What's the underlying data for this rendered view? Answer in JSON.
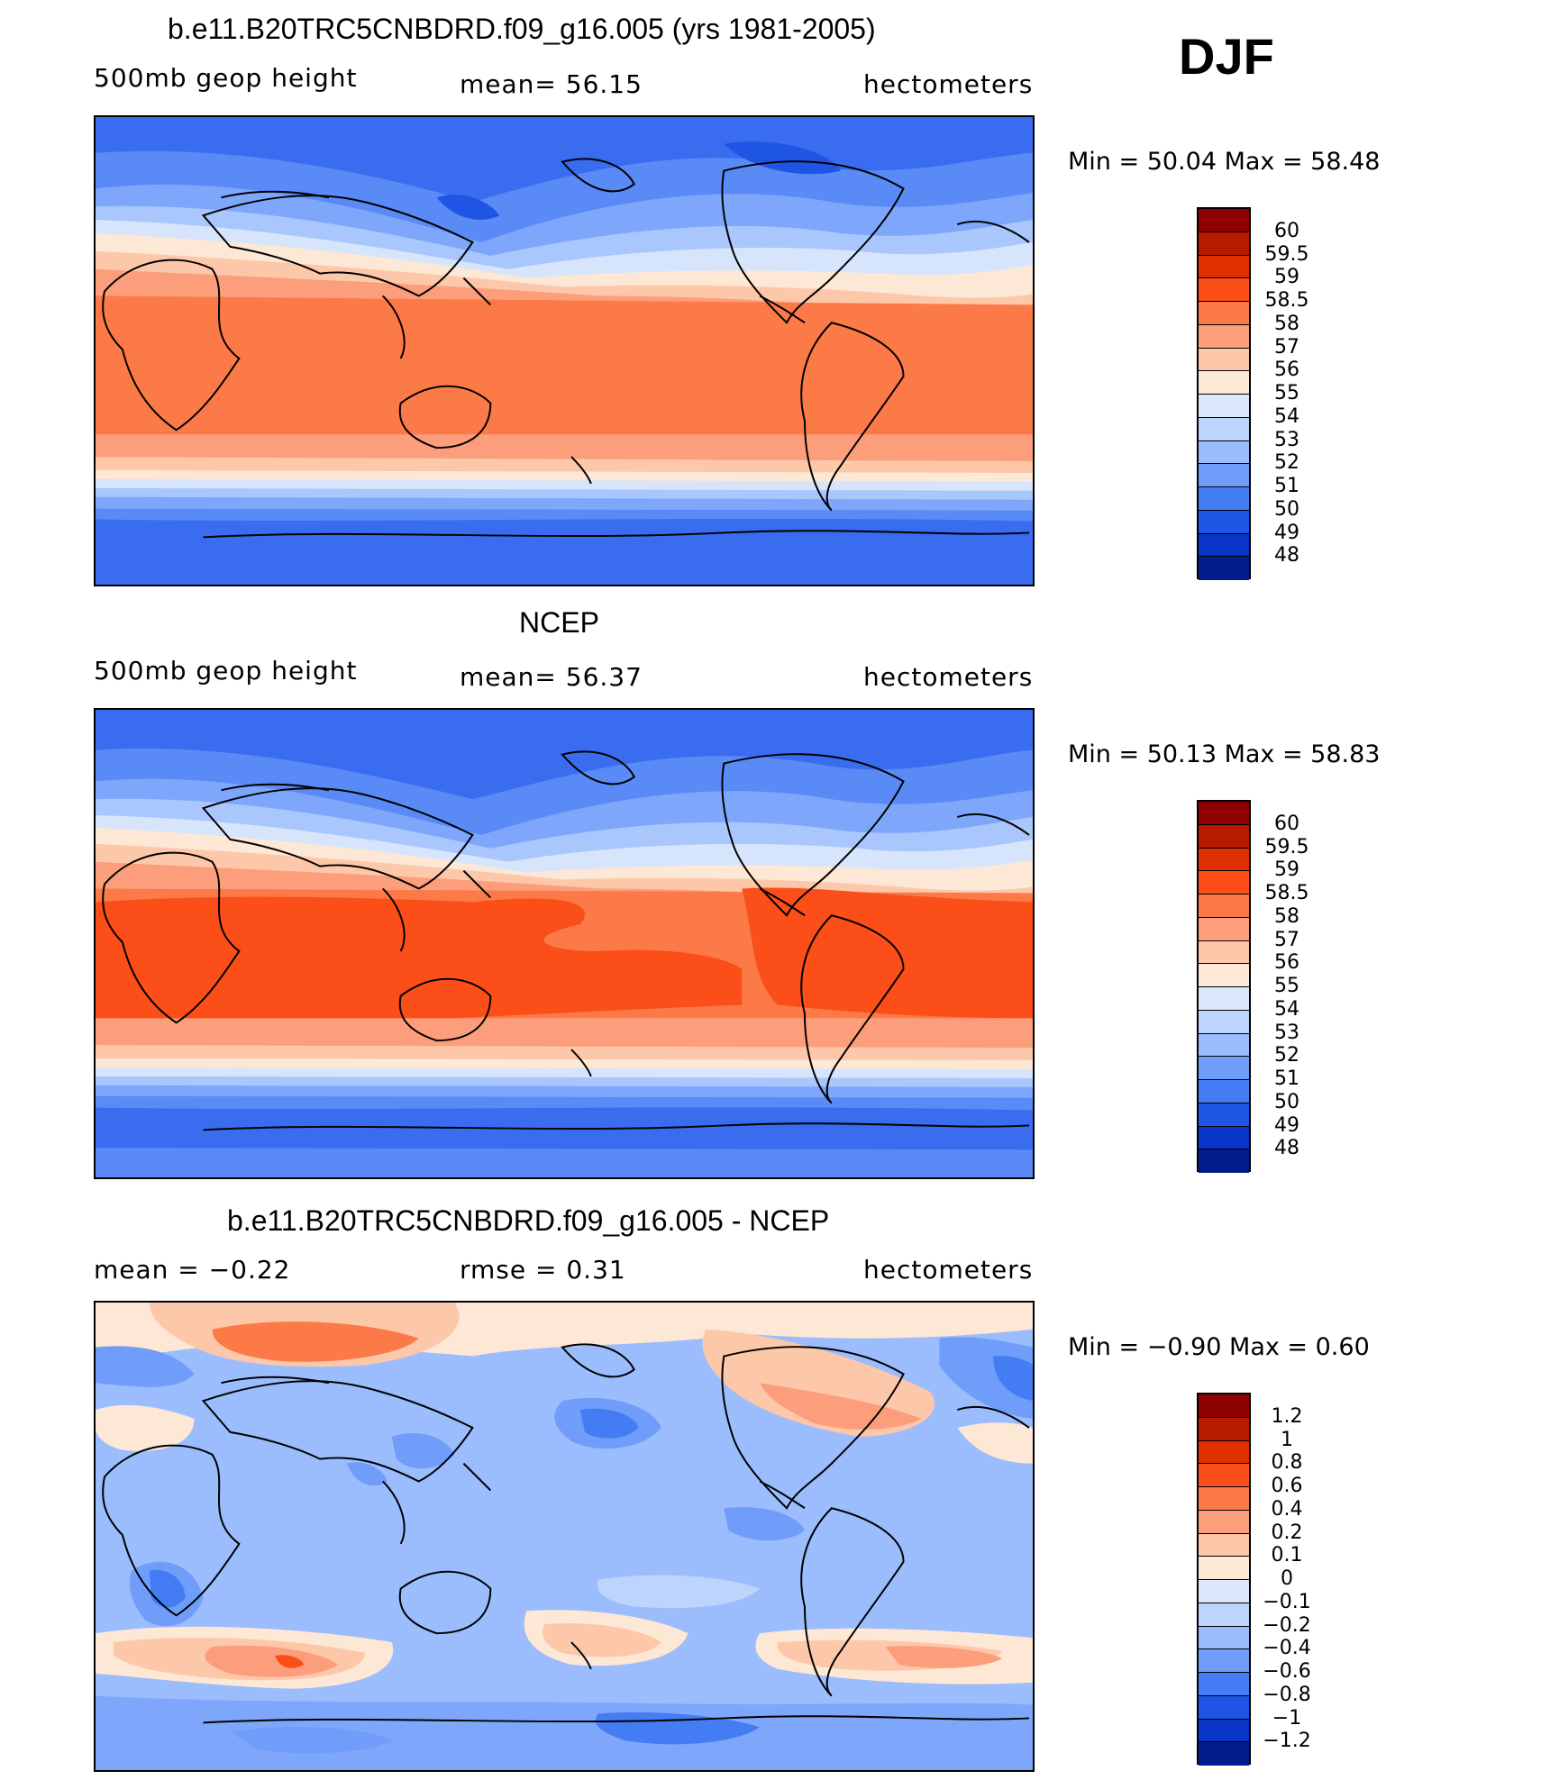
{
  "corner_label": "DJF",
  "panels": [
    {
      "title": "b.e11.B20TRC5CNBDRD.f09_g16.005 (yrs 1981-2005)",
      "left_label": "500mb  geop  height",
      "center_label": "mean=   56.15",
      "units": "hectometers",
      "minmax": "Min  =    50.04  Max  =    58.48",
      "levels": [
        "60",
        "59.5",
        "59",
        "58.5",
        "58",
        "57",
        "56",
        "55",
        "54",
        "53",
        "52",
        "51",
        "50",
        "49",
        "48"
      ],
      "colors": [
        "#8f0000",
        "#b81a00",
        "#e03000",
        "#fb4e19",
        "#fb7a48",
        "#fc9e7c",
        "#fdc7aa",
        "#fde7d5",
        "#dbe8fb",
        "#bdd4fd",
        "#9bbcfd",
        "#6f9df9",
        "#447cf3",
        "#1f55e4",
        "#0834c7",
        "#001c8d"
      ],
      "map_style": "model"
    },
    {
      "title": "NCEP",
      "left_label": "500mb  geop  height",
      "center_label": "mean=   56.37",
      "units": "hectometers",
      "minmax": "Min  =    50.13  Max  =    58.83",
      "levels": [
        "60",
        "59.5",
        "59",
        "58.5",
        "58",
        "57",
        "56",
        "55",
        "54",
        "53",
        "52",
        "51",
        "50",
        "49",
        "48"
      ],
      "colors": [
        "#8f0000",
        "#b81a00",
        "#e03000",
        "#fb4e19",
        "#fb7a48",
        "#fc9e7c",
        "#fdc7aa",
        "#fde7d5",
        "#dbe8fb",
        "#bdd4fd",
        "#9bbcfd",
        "#6f9df9",
        "#447cf3",
        "#1f55e4",
        "#0834c7",
        "#001c8d"
      ],
      "map_style": "obs"
    },
    {
      "title": "b.e11.B20TRC5CNBDRD.f09_g16.005 - NCEP",
      "left_label": "mean  =   −0.22",
      "center_label": "rmse  =     0.31",
      "units": "hectometers",
      "minmax": "Min  =   −0.90  Max  =     0.60",
      "levels": [
        "1.2",
        "1",
        "0.8",
        "0.6",
        "0.4",
        "0.2",
        "0.1",
        "0",
        "−0.1",
        "−0.2",
        "−0.4",
        "−0.6",
        "−0.8",
        "−1",
        "−1.2"
      ],
      "colors": [
        "#8f0000",
        "#b81a00",
        "#e03000",
        "#fb4e19",
        "#fb7a48",
        "#fc9e7c",
        "#fdc7aa",
        "#fde7d5",
        "#dbe8fb",
        "#bdd4fd",
        "#9bbcfd",
        "#6f9df9",
        "#447cf3",
        "#1f55e4",
        "#0834c7",
        "#001c8d"
      ],
      "map_style": "diff"
    }
  ]
}
